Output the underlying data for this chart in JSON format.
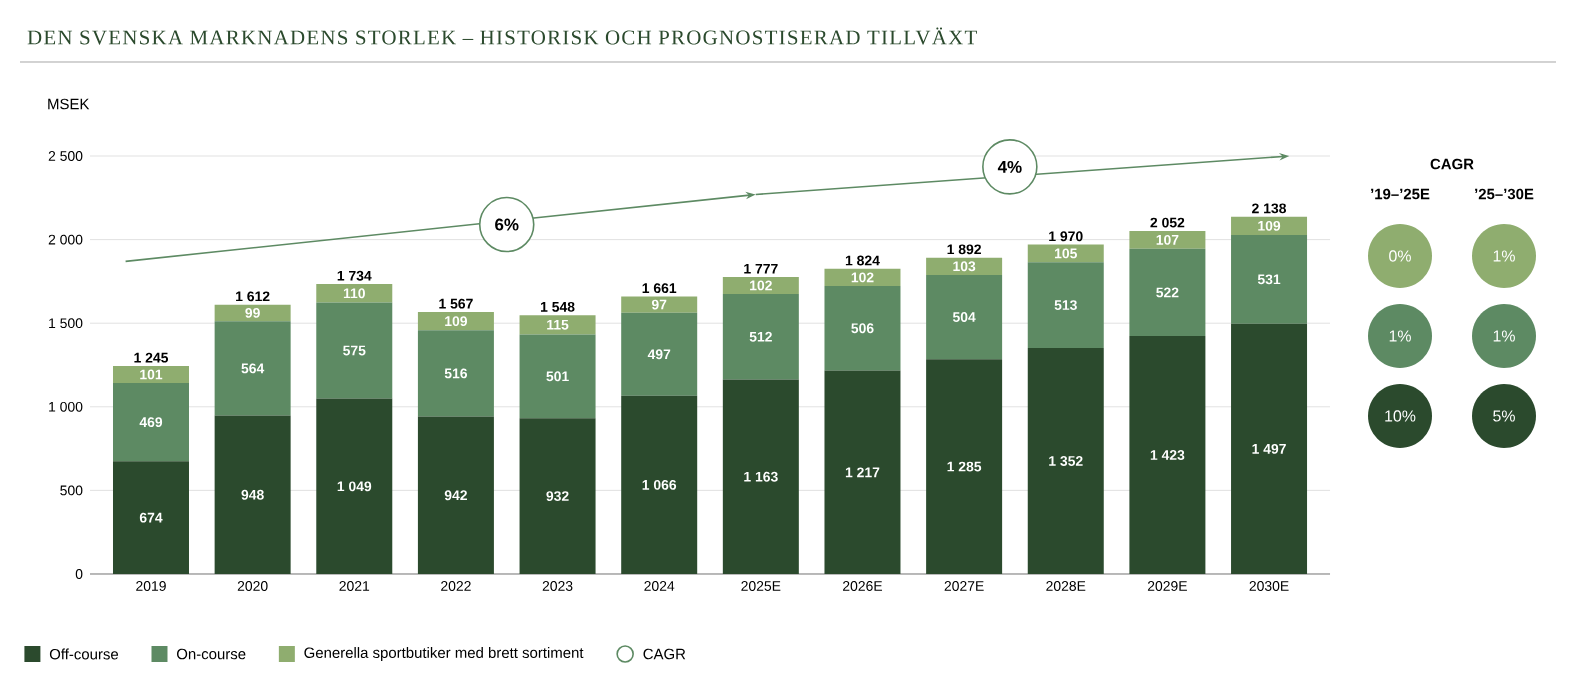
{
  "chart_data": {
    "type": "bar",
    "title": "DEN SVENSKA MARKNADENS STORLEK – HISTORISK OCH PROGNOSTISERAD TILLVÄXT",
    "ylabel": "MSEK",
    "categories": [
      "2019",
      "2020",
      "2021",
      "2022",
      "2023",
      "2024",
      "2025E",
      "2026E",
      "2027E",
      "2028E",
      "2029E",
      "2030E"
    ],
    "stacked": true,
    "series": [
      {
        "name": "Off-course",
        "color": "#2b4a2d",
        "values": [
          674,
          948,
          1049,
          942,
          932,
          1066,
          1163,
          1217,
          1285,
          1352,
          1423,
          1497
        ],
        "value_labels": [
          "674",
          "948",
          "1 049",
          "942",
          "932",
          "1 066",
          "1 163",
          "1 217",
          "1 285",
          "1 352",
          "1 423",
          "1 497"
        ]
      },
      {
        "name": "On-course",
        "color": "#5d8a63",
        "values": [
          469,
          564,
          575,
          516,
          501,
          497,
          512,
          506,
          504,
          513,
          522,
          531
        ],
        "value_labels": [
          "469",
          "564",
          "575",
          "516",
          "501",
          "497",
          "512",
          "506",
          "504",
          "513",
          "522",
          "531"
        ]
      },
      {
        "name": "Generella sportbutiker med brett sortiment",
        "color": "#8fad6f",
        "values": [
          101,
          99,
          110,
          109,
          115,
          97,
          102,
          102,
          103,
          105,
          107,
          109
        ],
        "value_labels": [
          "101",
          "99",
          "110",
          "109",
          "115",
          "97",
          "102",
          "102",
          "103",
          "105",
          "107",
          "109"
        ]
      }
    ],
    "totals": [
      "1 245",
      "1 612",
      "1 734",
      "1 567",
      "1 548",
      "1 661",
      "1 777",
      "1 824",
      "1 892",
      "1 970",
      "2 052",
      "2 138"
    ],
    "ylim": [
      0,
      2500
    ],
    "yticks": [
      0,
      500,
      {
        "value": 1000,
        "label": "1 000"
      },
      {
        "value": 1500,
        "label": "1 500"
      },
      {
        "value": 2000,
        "label": "2 000"
      },
      {
        "value": 2500,
        "label": "2 500"
      }
    ],
    "grid": "y",
    "legend": "bottom left",
    "annotations": [
      "6%",
      "4%",
      "CAGR",
      "’19–’25E",
      "’25–’30E",
      "0%",
      "1%",
      "1%",
      "1%",
      "10%",
      "5%",
      "CAGR"
    ]
  }
}
